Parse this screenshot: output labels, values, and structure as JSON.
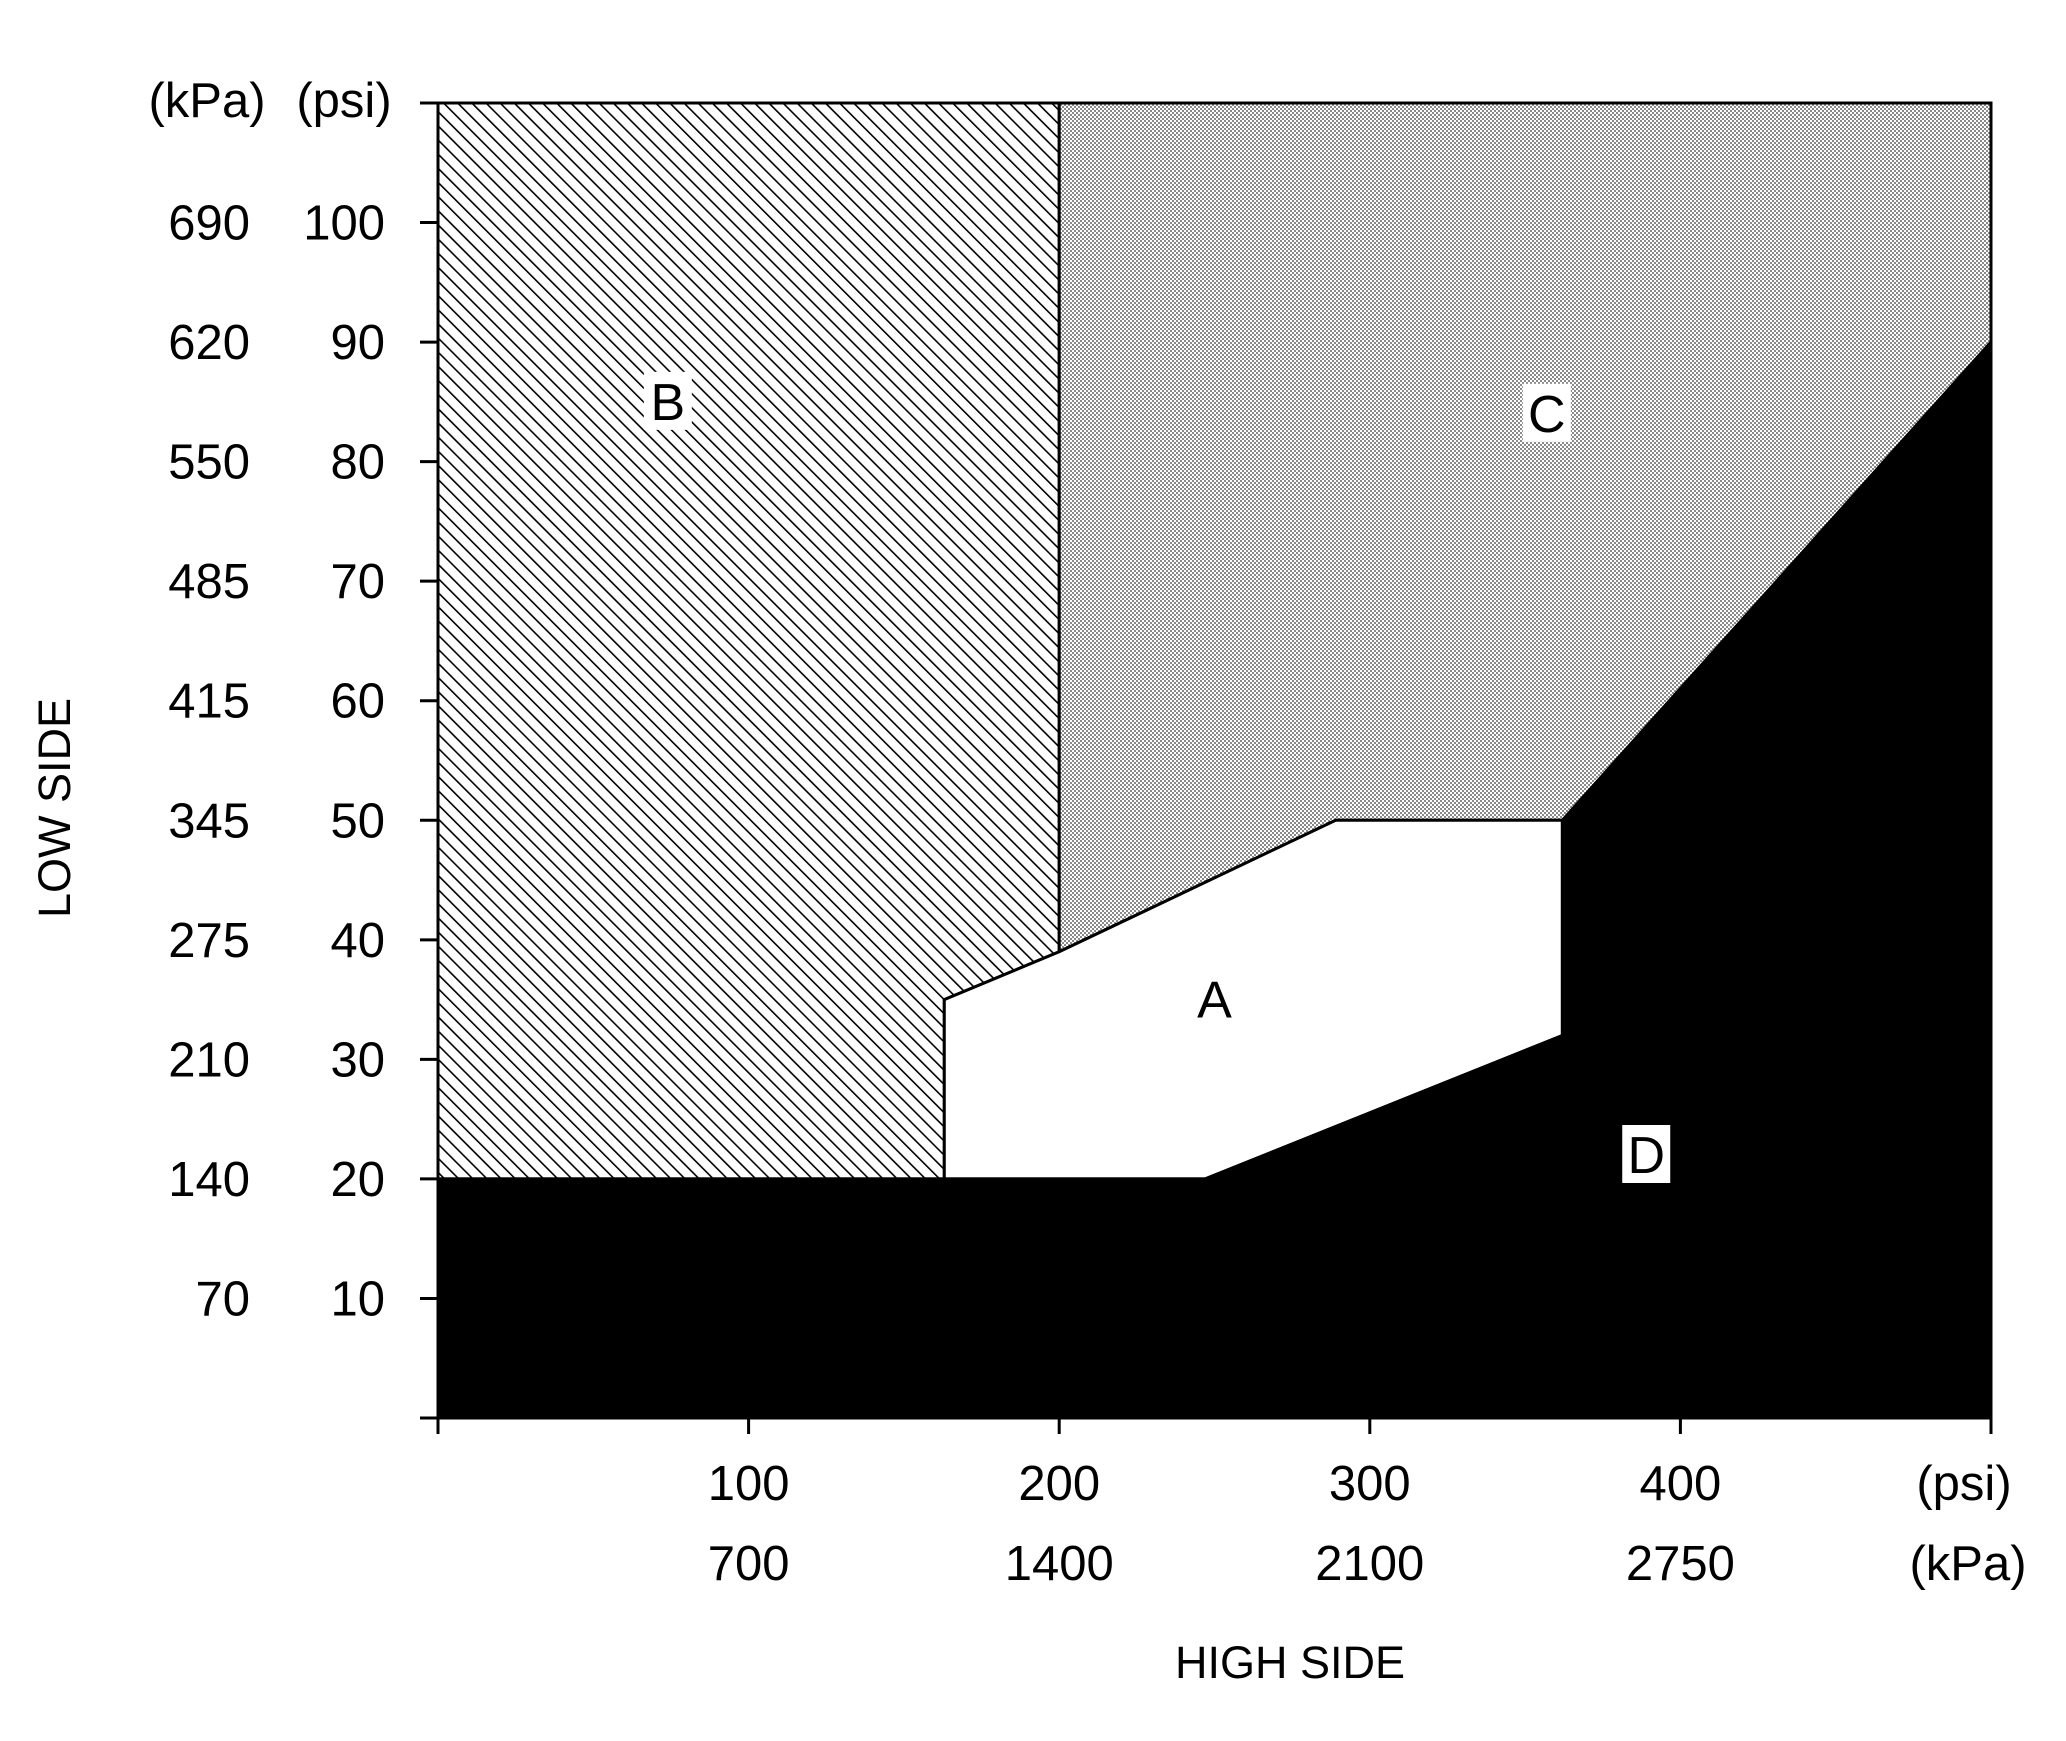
{
  "chart_data": {
    "type": "area",
    "xlabel": "HIGH SIDE",
    "ylabel": "LOW SIDE",
    "x_units": [
      "(psi)",
      "(kPa)"
    ],
    "y_units": [
      "(kPa)",
      "(psi)"
    ],
    "xlim": [
      0,
      500
    ],
    "ylim": [
      0,
      110
    ],
    "x_ticks": [
      {
        "psi": "100",
        "kpa": "700"
      },
      {
        "psi": "200",
        "kpa": "1400"
      },
      {
        "psi": "300",
        "kpa": "2100"
      },
      {
        "psi": "400",
        "kpa": "2750"
      }
    ],
    "y_ticks": [
      {
        "kpa": "70",
        "psi": "10"
      },
      {
        "kpa": "140",
        "psi": "20"
      },
      {
        "kpa": "210",
        "psi": "30"
      },
      {
        "kpa": "275",
        "psi": "40"
      },
      {
        "kpa": "345",
        "psi": "50"
      },
      {
        "kpa": "415",
        "psi": "60"
      },
      {
        "kpa": "485",
        "psi": "70"
      },
      {
        "kpa": "550",
        "psi": "80"
      },
      {
        "kpa": "620",
        "psi": "90"
      },
      {
        "kpa": "690",
        "psi": "100"
      }
    ],
    "regions": [
      {
        "label": "B",
        "fill": "hatch",
        "label_pos": [
          74,
          85
        ],
        "points": [
          [
            0,
            110
          ],
          [
            200,
            110
          ],
          [
            200,
            39
          ],
          [
            163,
            35
          ],
          [
            163,
            20
          ],
          [
            0,
            20
          ]
        ]
      },
      {
        "label": "C",
        "fill": "dots",
        "label_pos": [
          357,
          84
        ],
        "points": [
          [
            200,
            110
          ],
          [
            500,
            110
          ],
          [
            500,
            90
          ],
          [
            362,
            50
          ],
          [
            289,
            50
          ],
          [
            200,
            39
          ]
        ]
      },
      {
        "label": "A",
        "fill": "white",
        "label_pos": [
          250,
          35
        ],
        "points": [
          [
            163,
            35
          ],
          [
            200,
            39
          ],
          [
            289,
            50
          ],
          [
            362,
            50
          ],
          [
            362,
            32
          ],
          [
            247,
            20
          ],
          [
            163,
            20
          ]
        ]
      },
      {
        "label": "D",
        "fill": "black",
        "label_pos": [
          389,
          22
        ],
        "points": [
          [
            0,
            0
          ],
          [
            500,
            0
          ],
          [
            500,
            90
          ],
          [
            362,
            50
          ],
          [
            362,
            32
          ],
          [
            247,
            20
          ],
          [
            0,
            20
          ]
        ]
      }
    ]
  }
}
